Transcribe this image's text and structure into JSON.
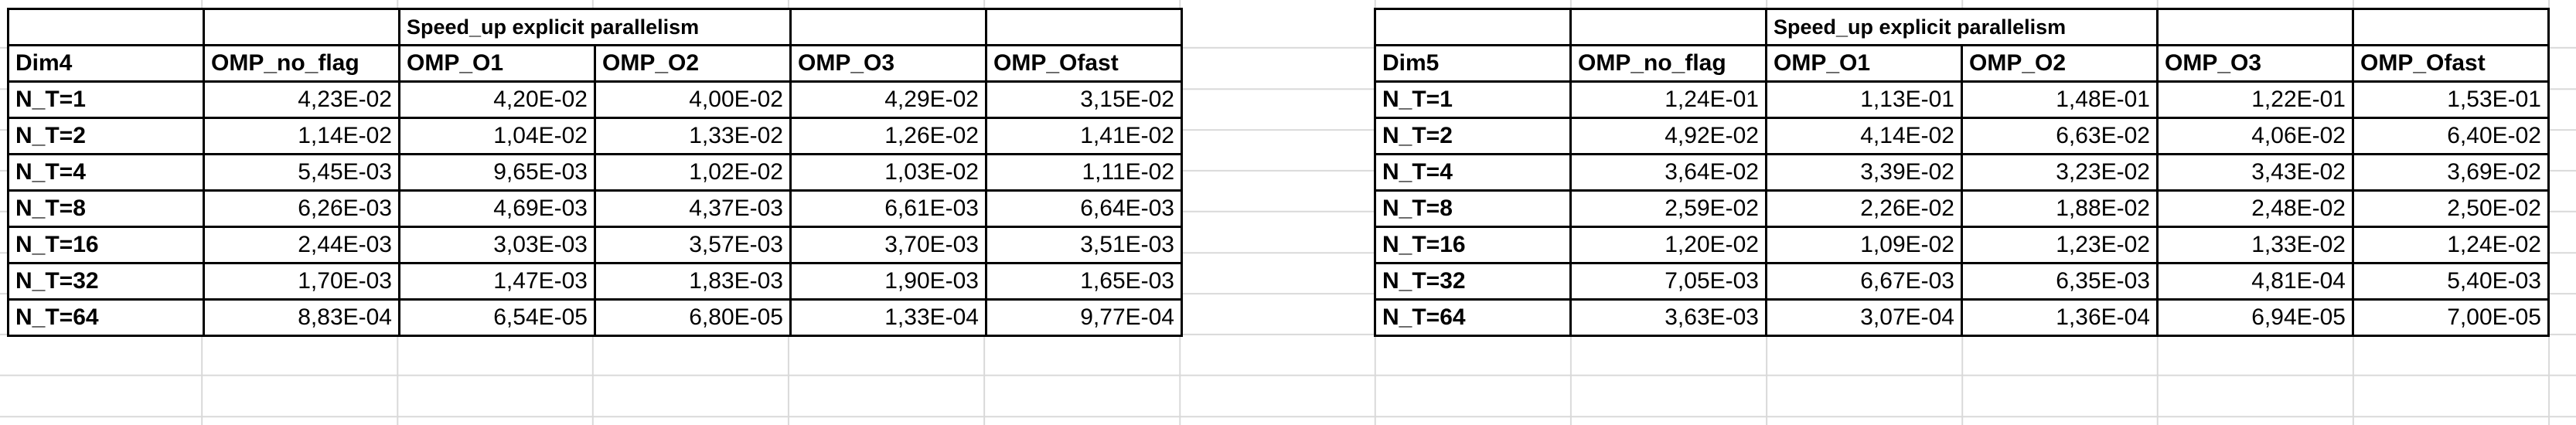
{
  "tables": [
    {
      "title": "Speed_up explicit parallelism",
      "corner": "Dim4",
      "columns": [
        "OMP_no_flag",
        "OMP_O1",
        "OMP_O2",
        "OMP_O3",
        "OMP_Ofast"
      ],
      "rows": [
        {
          "label": "N_T=1",
          "values": [
            "4,23E-02",
            "4,20E-02",
            "4,00E-02",
            "4,29E-02",
            "3,15E-02"
          ]
        },
        {
          "label": "N_T=2",
          "values": [
            "1,14E-02",
            "1,04E-02",
            "1,33E-02",
            "1,26E-02",
            "1,41E-02"
          ]
        },
        {
          "label": "N_T=4",
          "values": [
            "5,45E-03",
            "9,65E-03",
            "1,02E-02",
            "1,03E-02",
            "1,11E-02"
          ]
        },
        {
          "label": "N_T=8",
          "values": [
            "6,26E-03",
            "4,69E-03",
            "4,37E-03",
            "6,61E-03",
            "6,64E-03"
          ]
        },
        {
          "label": "N_T=16",
          "values": [
            "2,44E-03",
            "3,03E-03",
            "3,57E-03",
            "3,70E-03",
            "3,51E-03"
          ]
        },
        {
          "label": "N_T=32",
          "values": [
            "1,70E-03",
            "1,47E-03",
            "1,83E-03",
            "1,90E-03",
            "1,65E-03"
          ]
        },
        {
          "label": "N_T=64",
          "values": [
            "8,83E-04",
            "6,54E-05",
            "6,80E-05",
            "1,33E-04",
            "9,77E-04"
          ]
        }
      ]
    },
    {
      "title": "Speed_up explicit parallelism",
      "corner": "Dim5",
      "columns": [
        "OMP_no_flag",
        "OMP_O1",
        "OMP_O2",
        "OMP_O3",
        "OMP_Ofast"
      ],
      "rows": [
        {
          "label": "N_T=1",
          "values": [
            "1,24E-01",
            "1,13E-01",
            "1,48E-01",
            "1,22E-01",
            "1,53E-01"
          ]
        },
        {
          "label": "N_T=2",
          "values": [
            "4,92E-02",
            "4,14E-02",
            "6,63E-02",
            "4,06E-02",
            "6,40E-02"
          ]
        },
        {
          "label": "N_T=4",
          "values": [
            "3,64E-02",
            "3,39E-02",
            "3,23E-02",
            "3,43E-02",
            "3,69E-02"
          ]
        },
        {
          "label": "N_T=8",
          "values": [
            "2,59E-02",
            "2,26E-02",
            "1,88E-02",
            "2,48E-02",
            "2,50E-02"
          ]
        },
        {
          "label": "N_T=16",
          "values": [
            "1,20E-02",
            "1,09E-02",
            "1,23E-02",
            "1,33E-02",
            "1,24E-02"
          ]
        },
        {
          "label": "N_T=32",
          "values": [
            "7,05E-03",
            "6,67E-03",
            "6,35E-03",
            "4,81E-04",
            "5,40E-03"
          ]
        },
        {
          "label": "N_T=64",
          "values": [
            "3,63E-03",
            "3,07E-04",
            "1,36E-04",
            "6,94E-05",
            "7,00E-05"
          ]
        }
      ]
    }
  ]
}
